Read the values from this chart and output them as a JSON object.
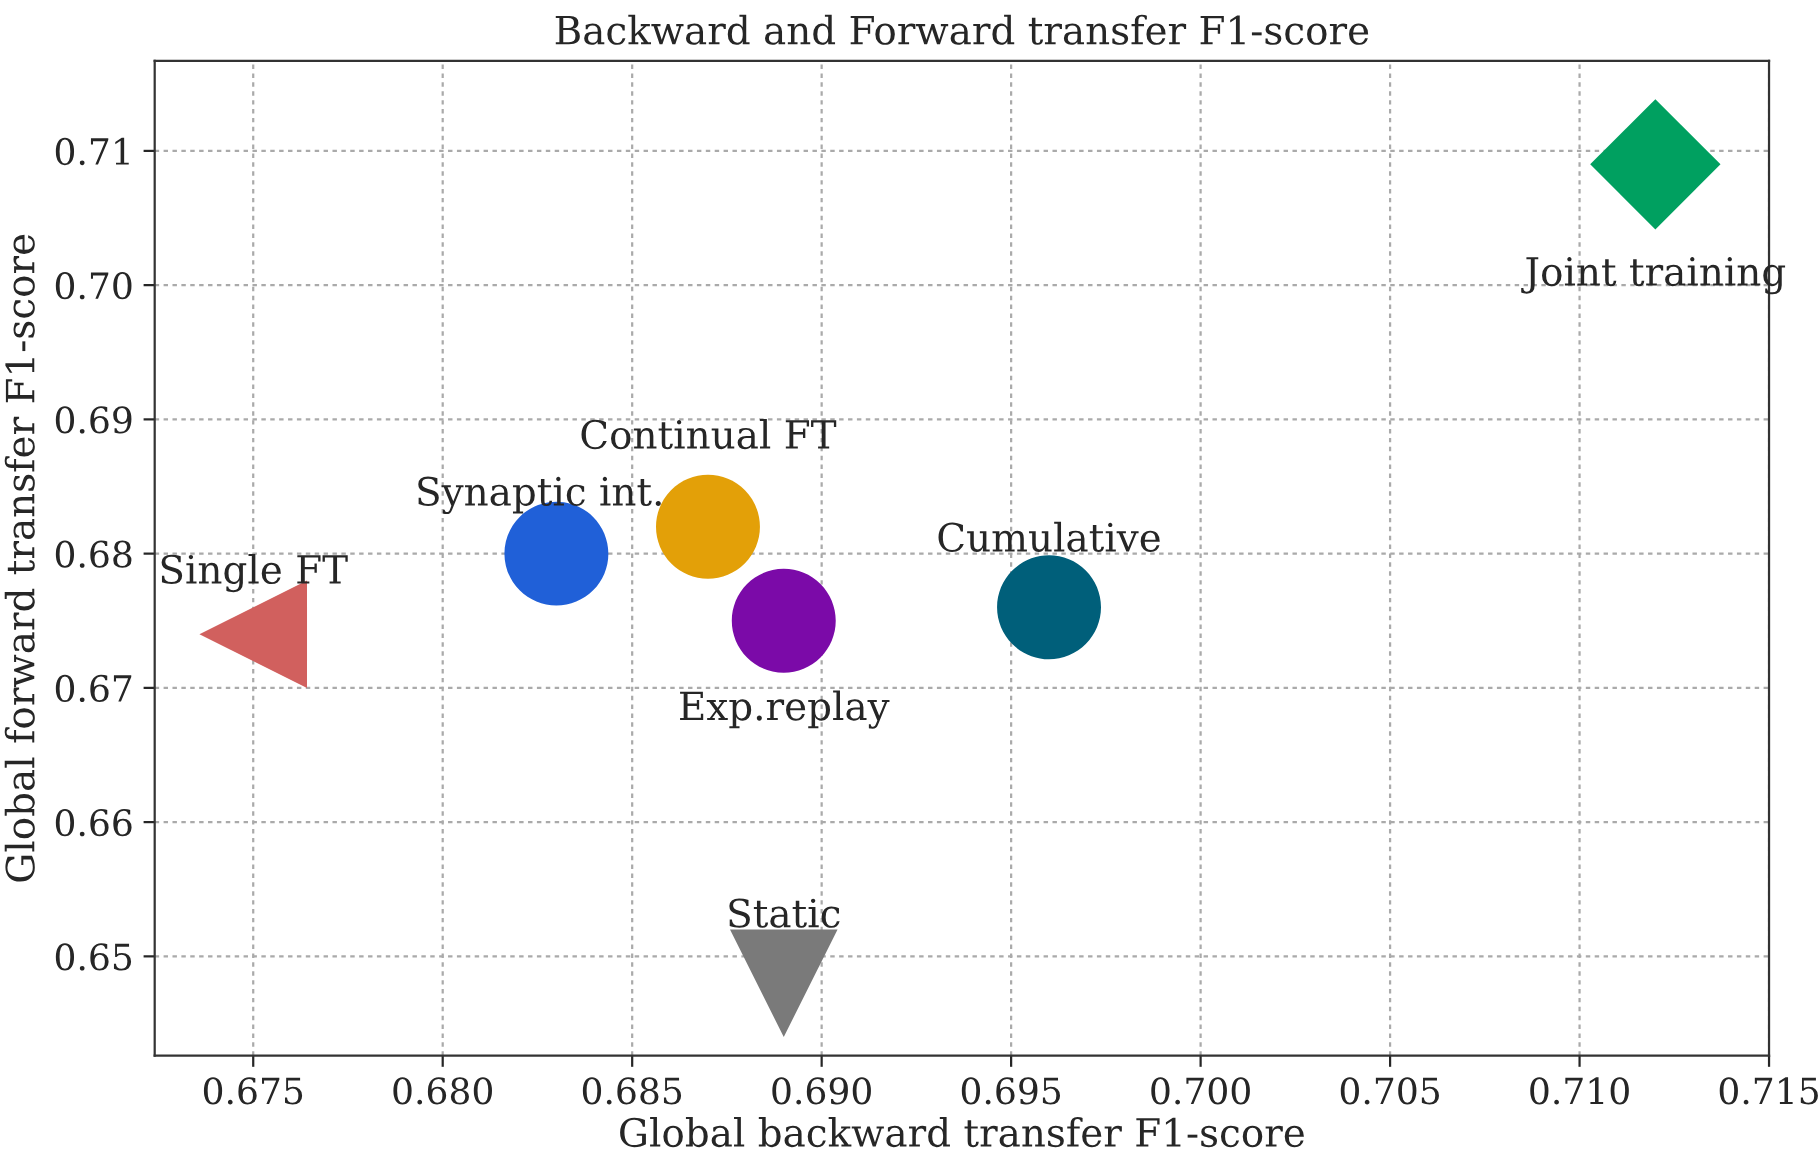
{
  "chart_data": {
    "type": "scatter",
    "title": "Backward and Forward transfer F1-score",
    "xlabel": "Global backward transfer F1-score",
    "ylabel": "Global forward transfer F1-score",
    "xlim": [
      0.6724,
      0.715
    ],
    "ylim": [
      0.6426,
      0.7167
    ],
    "xticks": [
      {
        "value": 0.675,
        "label": "0.675"
      },
      {
        "value": 0.68,
        "label": "0.680"
      },
      {
        "value": 0.685,
        "label": "0.685"
      },
      {
        "value": 0.69,
        "label": "0.690"
      },
      {
        "value": 0.695,
        "label": "0.695"
      },
      {
        "value": 0.7,
        "label": "0.700"
      },
      {
        "value": 0.705,
        "label": "0.705"
      },
      {
        "value": 0.71,
        "label": "0.710"
      },
      {
        "value": 0.715,
        "label": "0.715"
      }
    ],
    "yticks": [
      0.65,
      0.66,
      0.67,
      0.68,
      0.69,
      {
        "value": 0.7,
        "label": "0.70"
      },
      0.71
    ],
    "grid": true,
    "legend": false,
    "series": [
      {
        "name": "Single FT",
        "color": "#d1605e",
        "marker": "triangle-left",
        "x": [
          0.675
        ],
        "values": [
          0.674
        ]
      },
      {
        "name": "Synaptic int.",
        "color": "#2060d8",
        "marker": "circle",
        "x": [
          0.683
        ],
        "values": [
          0.68
        ]
      },
      {
        "name": "Continual FT",
        "color": "#e3a008",
        "marker": "circle",
        "x": [
          0.687
        ],
        "values": [
          0.682
        ]
      },
      {
        "name": "Exp.replay",
        "color": "#7b0aa8",
        "marker": "circle",
        "x": [
          0.689
        ],
        "values": [
          0.675
        ]
      },
      {
        "name": "Cumulative",
        "color": "#005f7a",
        "marker": "circle",
        "x": [
          0.696
        ],
        "values": [
          0.676
        ]
      },
      {
        "name": "Joint training",
        "color": "#00a060",
        "marker": "diamond",
        "x": [
          0.712
        ],
        "values": [
          0.709
        ]
      },
      {
        "name": "Static",
        "color": "#7a7a7a",
        "marker": "triangle-down",
        "x": [
          0.689
        ],
        "values": [
          0.648
        ]
      }
    ]
  }
}
